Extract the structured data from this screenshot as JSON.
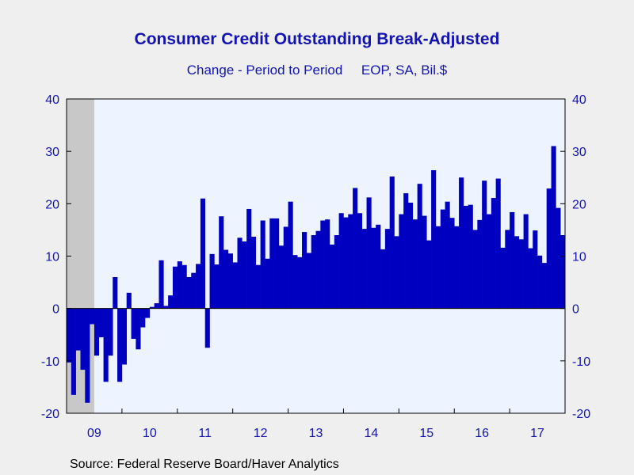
{
  "chart_data": {
    "type": "bar",
    "title": "Consumer Credit Outstanding Break-Adjusted",
    "subtitle": "Change - Period to Period     EOP, SA, Bil.$",
    "source": "Source:  Federal Reserve Board/Haver Analytics",
    "ylim": [
      -20,
      40
    ],
    "yticks": [
      -20,
      -10,
      0,
      10,
      20,
      30,
      40
    ],
    "ytick_labels": [
      "-20",
      "-10",
      "0",
      "10",
      "20",
      "30",
      "40"
    ],
    "xtick_labels": [
      "09",
      "10",
      "11",
      "12",
      "13",
      "14",
      "15",
      "16",
      "17"
    ],
    "x_start": "2009-01",
    "recession_shading": {
      "from": "2009-01",
      "to": "2009-06"
    },
    "colors": {
      "bar": "#0000c0",
      "plot_bg": "#eef4ff",
      "recession": "#c8c8c8",
      "text": "#1414b4"
    },
    "series": [
      {
        "values": [
          -10.3,
          -16.5,
          -8.0,
          -11.7,
          -18.0,
          -3.0,
          -9.0,
          -5.5,
          -14.0,
          -9.0,
          6.0,
          -14.0,
          -10.7,
          3.0,
          -5.8,
          -7.8,
          -3.6,
          -1.8,
          0.3,
          1.0,
          9.2,
          0.5,
          2.5,
          8.0,
          9.0,
          8.3,
          6.0,
          6.8,
          8.5,
          21.0,
          -7.5,
          10.4,
          8.4,
          17.6,
          11.2,
          10.5,
          8.8,
          13.5,
          12.8,
          19.0,
          13.7,
          8.3,
          16.8,
          9.5,
          17.2,
          17.2,
          12.0,
          15.6,
          20.4,
          10.2,
          9.8,
          14.6,
          10.6,
          14.0,
          14.8,
          16.8,
          17.0,
          12.2,
          14.0,
          18.2,
          17.4,
          18.0,
          23.0,
          18.2,
          15.2,
          21.2,
          15.4,
          16.0,
          11.3,
          15.2,
          25.2,
          13.8,
          18.0,
          22.0,
          20.2,
          17.0,
          23.8,
          17.7,
          13.0,
          26.4,
          15.7,
          18.9,
          20.4,
          17.3,
          15.7,
          25.0,
          19.6,
          19.8,
          15.0,
          16.9,
          24.4,
          18.0,
          21.1,
          24.8,
          11.6,
          15.0,
          18.4,
          13.8,
          13.2,
          18.0,
          11.5,
          14.9,
          10.1,
          8.7,
          22.9,
          31.0,
          19.2,
          14.0
        ]
      }
    ]
  }
}
